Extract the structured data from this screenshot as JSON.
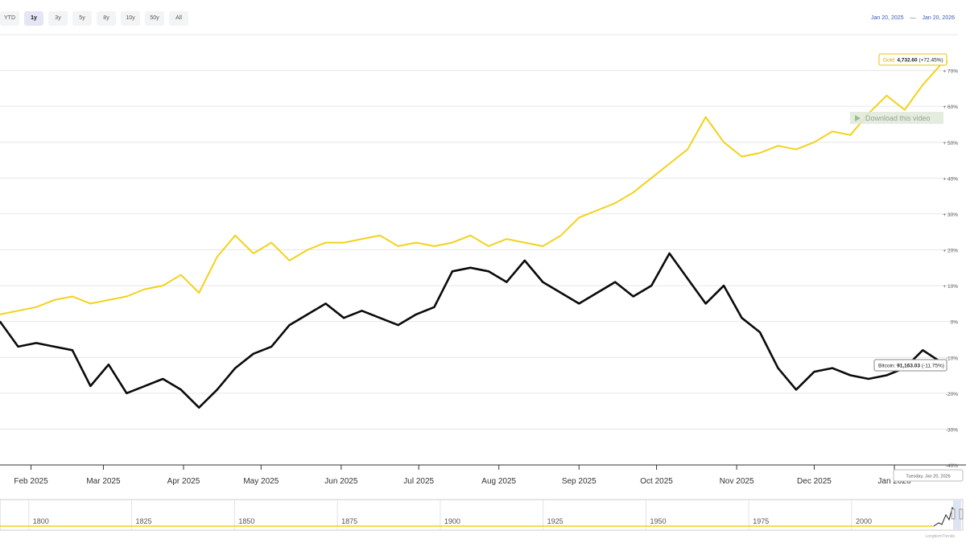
{
  "range_buttons": [
    "YTD",
    "1y",
    "3y",
    "5y",
    "8y",
    "10y",
    "50y",
    "All"
  ],
  "active_range": "1y",
  "date_range": {
    "from": "Jan 20, 2025",
    "sep": "—",
    "to": "Jan 20, 2026"
  },
  "download_label": "Download this video",
  "crosshair_date": "Tuesday, Jan 20, 2026",
  "credit": "LongtermTrends",
  "colors": {
    "gold": "#f2d21b",
    "bitcoin": "#0a0a0a",
    "grid": "#e6e6e6",
    "axis_text": "#555555"
  },
  "chart_data": {
    "type": "line",
    "yticks": [
      "+ 70%",
      "+ 60%",
      "+ 50%",
      "+ 40%",
      "+ 30%",
      "+ 20%",
      "+ 10%",
      "0%",
      "-10%",
      "-20%",
      "-30%",
      "-40%"
    ],
    "ytick_values": [
      70,
      60,
      50,
      40,
      30,
      20,
      10,
      0,
      -10,
      -20,
      -30,
      -40
    ],
    "ylim": [
      -40,
      80
    ],
    "xticks": [
      "Feb 2025",
      "Mar 2025",
      "Apr 2025",
      "May 2025",
      "Jun 2025",
      "Jul 2025",
      "Aug 2025",
      "Sep 2025",
      "Oct 2025",
      "Nov 2025",
      "Dec 2025",
      "Jan 2026"
    ],
    "xtick_dates": [
      "2025-02-01",
      "2025-03-01",
      "2025-04-01",
      "2025-05-01",
      "2025-06-01",
      "2025-07-01",
      "2025-08-01",
      "2025-09-01",
      "2025-10-01",
      "2025-11-01",
      "2025-12-01",
      "2026-01-01"
    ],
    "xlim": [
      "2025-01-20",
      "2026-01-20"
    ],
    "series": [
      {
        "name": "Gold",
        "label_value": "4,732.60",
        "label_pct": "(+72.45%)",
        "color": "#f2d21b",
        "points": [
          [
            "2025-01-20",
            2
          ],
          [
            "2025-01-27",
            3
          ],
          [
            "2025-02-03",
            4
          ],
          [
            "2025-02-10",
            6
          ],
          [
            "2025-02-17",
            7
          ],
          [
            "2025-02-24",
            5
          ],
          [
            "2025-03-03",
            6
          ],
          [
            "2025-03-10",
            7
          ],
          [
            "2025-03-17",
            9
          ],
          [
            "2025-03-24",
            10
          ],
          [
            "2025-03-31",
            13
          ],
          [
            "2025-04-07",
            8
          ],
          [
            "2025-04-14",
            18
          ],
          [
            "2025-04-21",
            24
          ],
          [
            "2025-04-28",
            19
          ],
          [
            "2025-05-05",
            22
          ],
          [
            "2025-05-12",
            17
          ],
          [
            "2025-05-19",
            20
          ],
          [
            "2025-05-26",
            22
          ],
          [
            "2025-06-02",
            22
          ],
          [
            "2025-06-09",
            23
          ],
          [
            "2025-06-16",
            24
          ],
          [
            "2025-06-23",
            21
          ],
          [
            "2025-06-30",
            22
          ],
          [
            "2025-07-07",
            21
          ],
          [
            "2025-07-14",
            22
          ],
          [
            "2025-07-21",
            24
          ],
          [
            "2025-07-28",
            21
          ],
          [
            "2025-08-04",
            23
          ],
          [
            "2025-08-11",
            22
          ],
          [
            "2025-08-18",
            21
          ],
          [
            "2025-08-25",
            24
          ],
          [
            "2025-09-01",
            29
          ],
          [
            "2025-09-08",
            31
          ],
          [
            "2025-09-15",
            33
          ],
          [
            "2025-09-22",
            36
          ],
          [
            "2025-09-29",
            40
          ],
          [
            "2025-10-06",
            44
          ],
          [
            "2025-10-13",
            48
          ],
          [
            "2025-10-20",
            57
          ],
          [
            "2025-10-27",
            50
          ],
          [
            "2025-11-03",
            46
          ],
          [
            "2025-11-10",
            47
          ],
          [
            "2025-11-17",
            49
          ],
          [
            "2025-11-24",
            48
          ],
          [
            "2025-12-01",
            50
          ],
          [
            "2025-12-08",
            53
          ],
          [
            "2025-12-15",
            52
          ],
          [
            "2025-12-22",
            58
          ],
          [
            "2025-12-29",
            63
          ],
          [
            "2026-01-05",
            59
          ],
          [
            "2026-01-12",
            66
          ],
          [
            "2026-01-20",
            72.45
          ]
        ]
      },
      {
        "name": "Bitcoin",
        "label_value": "91,163.03",
        "label_pct": "(-11.75%)",
        "color": "#0a0a0a",
        "points": [
          [
            "2025-01-20",
            0
          ],
          [
            "2025-01-27",
            -7
          ],
          [
            "2025-02-03",
            -6
          ],
          [
            "2025-02-10",
            -7
          ],
          [
            "2025-02-17",
            -8
          ],
          [
            "2025-02-24",
            -18
          ],
          [
            "2025-03-03",
            -12
          ],
          [
            "2025-03-10",
            -20
          ],
          [
            "2025-03-17",
            -18
          ],
          [
            "2025-03-24",
            -16
          ],
          [
            "2025-03-31",
            -19
          ],
          [
            "2025-04-07",
            -24
          ],
          [
            "2025-04-14",
            -19
          ],
          [
            "2025-04-21",
            -13
          ],
          [
            "2025-04-28",
            -9
          ],
          [
            "2025-05-05",
            -7
          ],
          [
            "2025-05-12",
            -1
          ],
          [
            "2025-05-19",
            2
          ],
          [
            "2025-05-26",
            5
          ],
          [
            "2025-06-02",
            1
          ],
          [
            "2025-06-09",
            3
          ],
          [
            "2025-06-16",
            1
          ],
          [
            "2025-06-23",
            -1
          ],
          [
            "2025-06-30",
            2
          ],
          [
            "2025-07-07",
            4
          ],
          [
            "2025-07-14",
            14
          ],
          [
            "2025-07-21",
            15
          ],
          [
            "2025-07-28",
            14
          ],
          [
            "2025-08-04",
            11
          ],
          [
            "2025-08-11",
            17
          ],
          [
            "2025-08-18",
            11
          ],
          [
            "2025-08-25",
            8
          ],
          [
            "2025-09-01",
            5
          ],
          [
            "2025-09-08",
            8
          ],
          [
            "2025-09-15",
            11
          ],
          [
            "2025-09-22",
            7
          ],
          [
            "2025-09-29",
            10
          ],
          [
            "2025-10-06",
            19
          ],
          [
            "2025-10-13",
            12
          ],
          [
            "2025-10-20",
            5
          ],
          [
            "2025-10-27",
            10
          ],
          [
            "2025-11-03",
            1
          ],
          [
            "2025-11-10",
            -3
          ],
          [
            "2025-11-17",
            -13
          ],
          [
            "2025-11-24",
            -19
          ],
          [
            "2025-12-01",
            -14
          ],
          [
            "2025-12-08",
            -13
          ],
          [
            "2025-12-15",
            -15
          ],
          [
            "2025-12-22",
            -16
          ],
          [
            "2025-12-29",
            -15
          ],
          [
            "2026-01-05",
            -13
          ],
          [
            "2026-01-12",
            -8
          ],
          [
            "2026-01-20",
            -11.75
          ]
        ]
      }
    ]
  },
  "navigator": {
    "years": [
      "1800",
      "1825",
      "1850",
      "1875",
      "1900",
      "1925",
      "1950",
      "1975",
      "2000"
    ],
    "year_values": [
      1800,
      1825,
      1850,
      1875,
      1900,
      1925,
      1950,
      1975,
      2000
    ],
    "xlim": [
      1793,
      2027
    ]
  }
}
